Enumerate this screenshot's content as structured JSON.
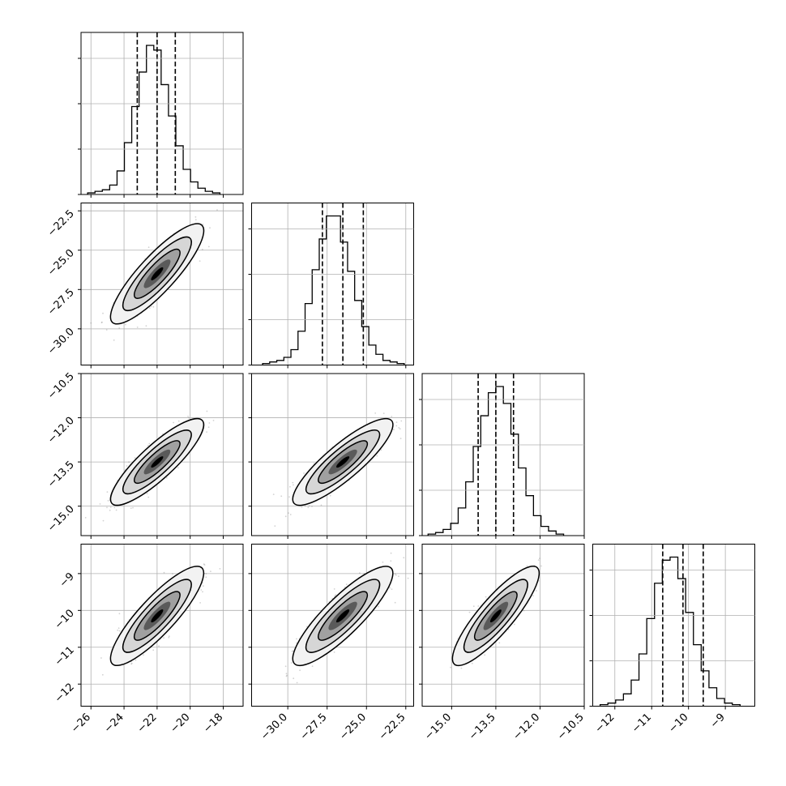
{
  "chart_data": {
    "type": "corner",
    "n_params": 4,
    "params": [
      {
        "range": [
          -26.6,
          -16.8
        ],
        "ticks": [
          -26,
          -24,
          -22,
          -20,
          -18
        ],
        "tick_labels": [
          "−26",
          "−24",
          "−22",
          "−20",
          "−18"
        ],
        "quantiles": [
          -23.2,
          -22.0,
          -20.9
        ],
        "hist": [
          1,
          2,
          3,
          6,
          15,
          33,
          56,
          78,
          95,
          92,
          70,
          50,
          31,
          16,
          8,
          4,
          2,
          1
        ],
        "hist_range": [
          -26.2,
          -18.2
        ]
      },
      {
        "range": [
          -32.3,
          -22.0
        ],
        "ticks": [
          -30.0,
          -27.5,
          -25.0,
          -22.5
        ],
        "tick_labels": [
          "−30.0",
          "−27.5",
          "−25.0",
          "−22.5"
        ],
        "quantiles": [
          -27.8,
          -26.5,
          -25.2
        ],
        "hist": [
          1,
          2,
          3,
          5,
          10,
          22,
          40,
          62,
          82,
          97,
          97,
          80,
          61,
          42,
          25,
          13,
          7,
          3,
          2,
          1
        ],
        "hist_range": [
          -31.6,
          -22.6
        ]
      },
      {
        "range": [
          -16.0,
          -10.5
        ],
        "ticks": [
          -15.0,
          -13.5,
          -12.0,
          -10.5
        ],
        "tick_labels": [
          "−15.0",
          "−13.5",
          "−12.0",
          "−10.5"
        ],
        "quantiles": [
          -14.1,
          -13.5,
          -12.9
        ],
        "hist": [
          1,
          2,
          4,
          8,
          18,
          35,
          58,
          78,
          93,
          97,
          86,
          66,
          44,
          26,
          13,
          6,
          3,
          1
        ],
        "hist_range": [
          -15.8,
          -11.2
        ]
      },
      {
        "range": [
          -12.6,
          -8.2
        ],
        "ticks": [
          -12,
          -11,
          -10,
          -9
        ],
        "tick_labels": [
          "−12",
          "−11",
          "−10",
          "−9"
        ],
        "quantiles": [
          -10.7,
          -10.15,
          -9.6
        ],
        "hist": [
          1,
          2,
          4,
          8,
          17,
          34,
          57,
          80,
          95,
          97,
          83,
          61,
          40,
          23,
          12,
          5,
          2,
          1
        ],
        "hist_range": [
          -12.4,
          -8.6
        ]
      }
    ],
    "correlation": 0.86,
    "contour_levels": 3,
    "grid": true
  },
  "style": {
    "line_color": "#000000",
    "scatter_color": "#7f7f7f",
    "grid_color": "#b0b0b0",
    "contour_fill": [
      "#f2f2f2",
      "#d6d6d6",
      "#a0a0a0",
      "#5a5a5a",
      "#000000"
    ]
  }
}
